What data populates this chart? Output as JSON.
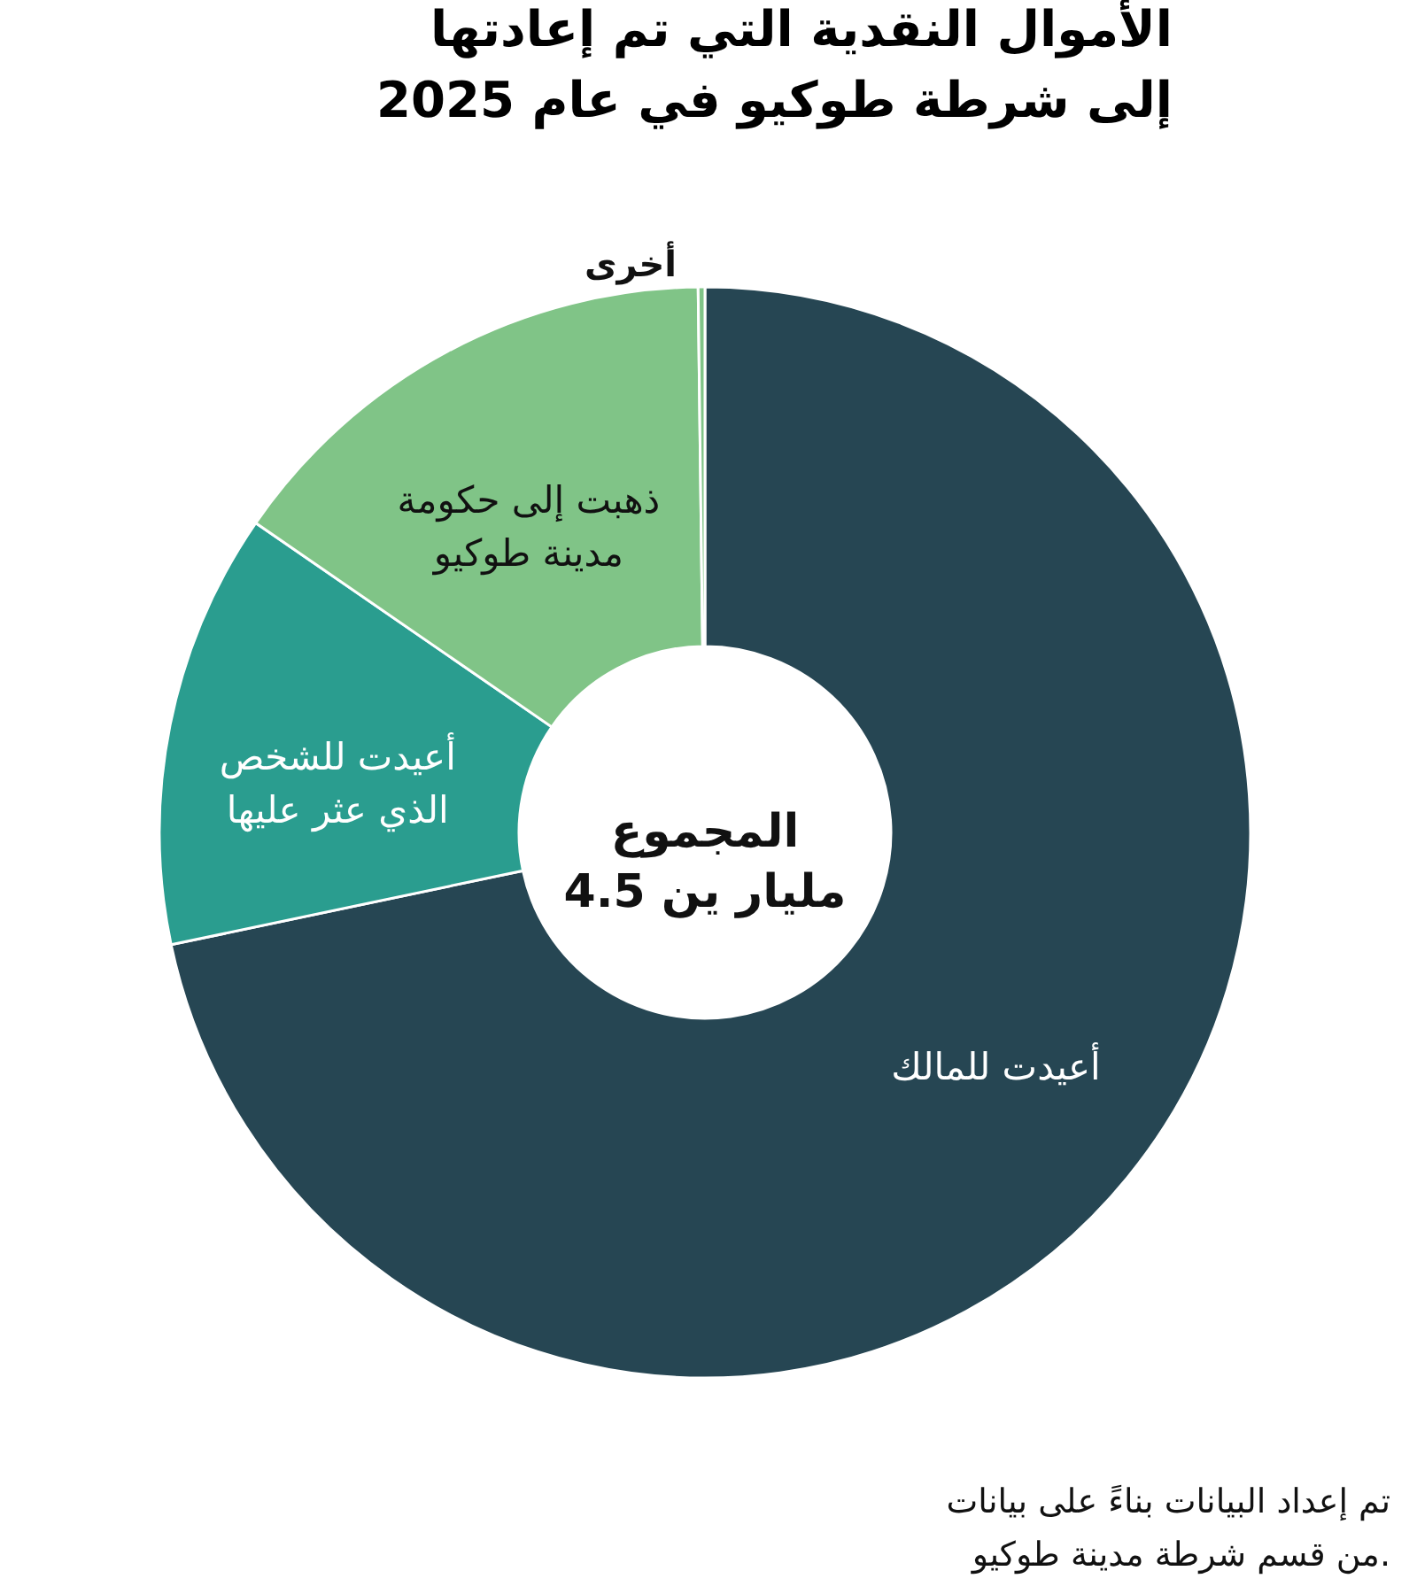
{
  "chart_data": {
    "type": "donut",
    "title": "الأموال النقدية التي تم إعادتها\nإلى شرطة طوكيو في عام 2025",
    "categories": [
      "أعيدت للمالك",
      "أعيدت للشخص\nالذي عثر عليها",
      "ذهبت إلى حكومة\nمدينة طوكيو",
      "أخرى"
    ],
    "values": [
      71.7,
      12.9,
      15.2,
      0.2
    ],
    "colors": [
      "#264653",
      "#2a9d8f",
      "#80c487",
      "#80c487"
    ],
    "annotations": [
      "المجموع\n4.5 مليار ين",
      "تم إعداد البيانات بناءً على بيانات\nمن قسم شرطة مدينة طوكيو."
    ]
  }
}
